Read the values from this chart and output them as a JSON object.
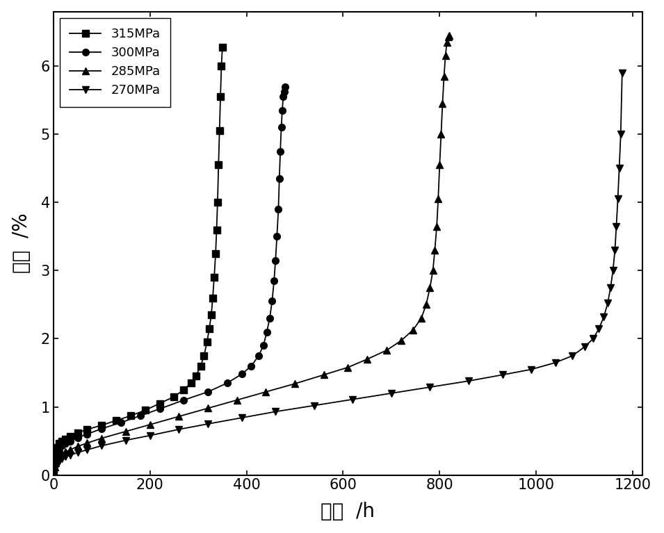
{
  "series": [
    {
      "label": "315MPa",
      "marker": "s",
      "t_points": [
        0,
        1,
        3,
        5,
        8,
        12,
        18,
        25,
        35,
        50,
        70,
        100,
        130,
        160,
        190,
        220,
        250,
        270,
        285,
        295,
        305,
        312,
        318,
        323,
        327,
        330,
        333,
        336,
        338,
        340,
        342,
        344,
        346,
        348,
        350
      ],
      "eps_points": [
        0.0,
        0.1,
        0.22,
        0.32,
        0.4,
        0.46,
        0.5,
        0.53,
        0.57,
        0.62,
        0.67,
        0.73,
        0.8,
        0.87,
        0.95,
        1.05,
        1.15,
        1.25,
        1.35,
        1.45,
        1.6,
        1.75,
        1.95,
        2.15,
        2.35,
        2.6,
        2.9,
        3.25,
        3.6,
        4.0,
        4.55,
        5.05,
        5.55,
        6.0,
        6.28
      ]
    },
    {
      "label": "300MPa",
      "marker": "o",
      "t_points": [
        0,
        1,
        3,
        5,
        8,
        12,
        18,
        25,
        35,
        50,
        70,
        100,
        140,
        180,
        220,
        270,
        320,
        360,
        390,
        410,
        425,
        435,
        442,
        448,
        453,
        457,
        460,
        463,
        466,
        468,
        470,
        472,
        474,
        476,
        478,
        480
      ],
      "eps_points": [
        0.0,
        0.08,
        0.18,
        0.26,
        0.33,
        0.38,
        0.43,
        0.46,
        0.5,
        0.55,
        0.6,
        0.68,
        0.77,
        0.87,
        0.97,
        1.1,
        1.22,
        1.35,
        1.48,
        1.6,
        1.75,
        1.9,
        2.1,
        2.3,
        2.55,
        2.85,
        3.15,
        3.5,
        3.9,
        4.35,
        4.75,
        5.1,
        5.35,
        5.55,
        5.62,
        5.7
      ]
    },
    {
      "label": "285MPa",
      "marker": "^",
      "t_points": [
        0,
        1,
        3,
        5,
        8,
        12,
        18,
        25,
        35,
        50,
        70,
        100,
        150,
        200,
        260,
        320,
        380,
        440,
        500,
        560,
        610,
        650,
        690,
        720,
        745,
        762,
        772,
        780,
        786,
        790,
        794,
        797,
        800,
        803,
        806,
        809,
        812,
        815,
        818,
        820
      ],
      "eps_points": [
        0.0,
        0.05,
        0.12,
        0.18,
        0.23,
        0.27,
        0.31,
        0.34,
        0.37,
        0.42,
        0.47,
        0.54,
        0.64,
        0.74,
        0.86,
        0.98,
        1.1,
        1.22,
        1.34,
        1.47,
        1.58,
        1.7,
        1.83,
        1.97,
        2.13,
        2.3,
        2.5,
        2.75,
        3.0,
        3.3,
        3.65,
        4.05,
        4.55,
        5.0,
        5.45,
        5.85,
        6.15,
        6.35,
        6.43,
        6.45
      ]
    },
    {
      "label": "270MPa",
      "marker": "v",
      "t_points": [
        0,
        1,
        3,
        5,
        8,
        12,
        18,
        25,
        35,
        50,
        70,
        100,
        150,
        200,
        260,
        320,
        390,
        460,
        540,
        620,
        700,
        780,
        860,
        930,
        990,
        1040,
        1075,
        1100,
        1118,
        1130,
        1140,
        1148,
        1154,
        1159,
        1163,
        1166,
        1169,
        1172,
        1175,
        1178
      ],
      "eps_points": [
        0.0,
        0.04,
        0.09,
        0.13,
        0.17,
        0.2,
        0.24,
        0.27,
        0.29,
        0.33,
        0.37,
        0.43,
        0.51,
        0.58,
        0.67,
        0.75,
        0.84,
        0.93,
        1.02,
        1.11,
        1.2,
        1.29,
        1.38,
        1.47,
        1.55,
        1.65,
        1.75,
        1.88,
        2.0,
        2.15,
        2.32,
        2.52,
        2.75,
        3.0,
        3.3,
        3.65,
        4.05,
        4.5,
        5.0,
        5.9
      ]
    }
  ],
  "xlim": [
    0,
    1220
  ],
  "ylim": [
    0,
    6.8
  ],
  "xticks": [
    0,
    200,
    400,
    600,
    800,
    1000,
    1200
  ],
  "yticks": [
    0,
    1,
    2,
    3,
    4,
    5,
    6
  ],
  "xlabel": "时间  /h",
  "ylabel": "应变  /%",
  "background_color": "#ffffff",
  "line_color": "#000000",
  "markersize": 7,
  "linewidth": 1.3
}
